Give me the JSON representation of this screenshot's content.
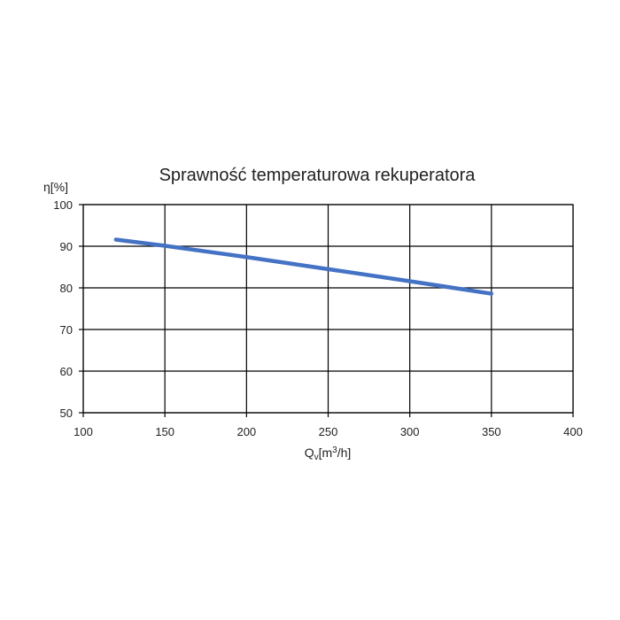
{
  "chart_data": {
    "type": "line",
    "title": "Sprawność temperaturowa rekuperatora",
    "ylabel": "η[%]",
    "xlabel": {
      "base": "Q",
      "sub": "v",
      "pre": "[m",
      "sup": "3",
      "post": "/h]"
    },
    "xlim": [
      100,
      400
    ],
    "ylim": [
      50,
      100
    ],
    "x_ticks": [
      "100",
      "150",
      "200",
      "250",
      "300",
      "350",
      "400"
    ],
    "y_ticks": [
      "50",
      "60",
      "70",
      "80",
      "90",
      "100"
    ],
    "grid": true,
    "series": [
      {
        "x": [
          120,
          150,
          200,
          250,
          300,
          350
        ],
        "y": [
          91.6,
          90.1,
          87.4,
          84.5,
          81.6,
          78.6
        ],
        "color": "#4472C4"
      }
    ]
  }
}
